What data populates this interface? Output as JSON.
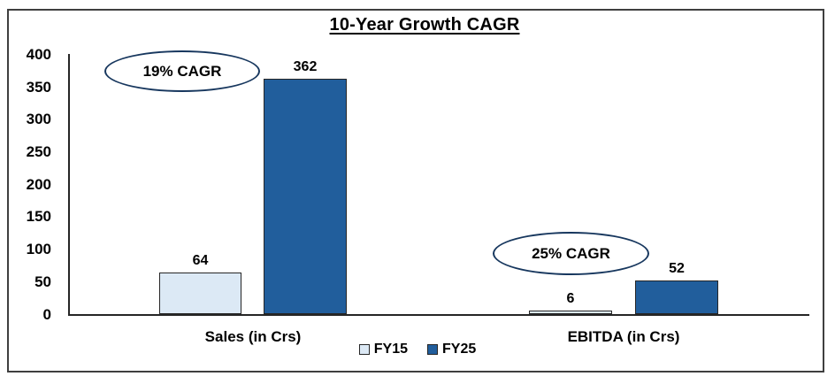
{
  "chart_data": {
    "type": "bar",
    "title": "10-Year Growth CAGR",
    "categories": [
      "Sales (in Crs)",
      "EBITDA (in Crs)"
    ],
    "series": [
      {
        "name": "FY15",
        "values": [
          64,
          6
        ],
        "color": "#dce9f5"
      },
      {
        "name": "FY25",
        "values": [
          362,
          52
        ],
        "color": "#215e9c"
      }
    ],
    "ylim": [
      0,
      400
    ],
    "yticks": [
      0,
      50,
      100,
      150,
      200,
      250,
      300,
      350,
      400
    ],
    "grid": false,
    "legend_position": "bottom-center",
    "annotations": [
      {
        "text": "19% CAGR",
        "attached_to": "Sales (in Crs)"
      },
      {
        "text": "25% CAGR",
        "attached_to": "EBITDA (in Crs)"
      }
    ],
    "colors": {
      "bar_border": "#262626",
      "annotation_border": "#17375e",
      "axis": "#262626",
      "text": "#000000",
      "frame_border": "#3f3f3f"
    }
  }
}
